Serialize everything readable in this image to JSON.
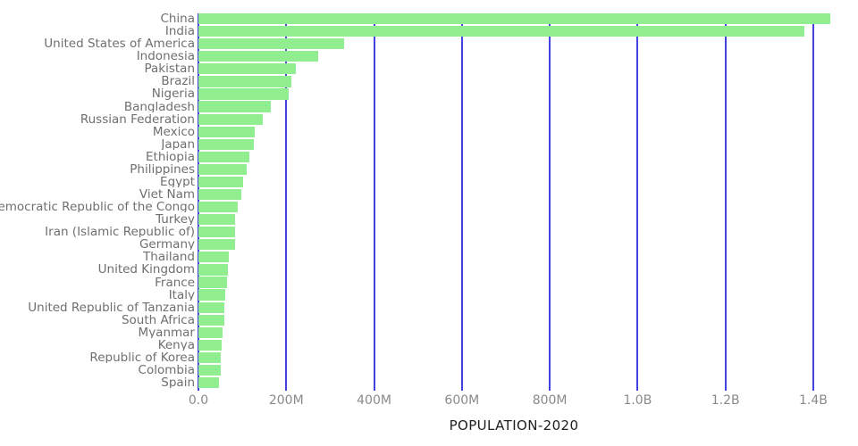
{
  "chart_data": {
    "type": "bar",
    "orientation": "horizontal",
    "title": "",
    "xlabel": "POPULATION-2020",
    "ylabel": "",
    "units": "millions of people",
    "grid": true,
    "bar_color": "#90ee90",
    "gridline_color": "#4343e0",
    "xlim_millions": [
      0,
      1480
    ],
    "categories": [
      "China",
      "India",
      "United States of America",
      "Indonesia",
      "Pakistan",
      "Brazil",
      "Nigeria",
      "Bangladesh",
      "Russian Federation",
      "Mexico",
      "Japan",
      "Ethiopia",
      "Philippines",
      "Egypt",
      "Viet Nam",
      "Democratic Republic of the Congo",
      "Turkey",
      "Iran (Islamic Republic of)",
      "Germany",
      "Thailand",
      "United Kingdom",
      "France",
      "Italy",
      "United Republic of Tanzania",
      "South Africa",
      "Myanmar",
      "Kenya",
      "Republic of Korea",
      "Colombia",
      "Spain"
    ],
    "values_millions": [
      1439.3,
      1380.0,
      331.0,
      273.5,
      220.9,
      212.6,
      206.1,
      164.7,
      145.9,
      128.9,
      126.5,
      115.0,
      109.6,
      102.3,
      97.3,
      89.6,
      84.3,
      84.0,
      83.8,
      69.8,
      67.9,
      65.3,
      60.5,
      59.7,
      59.3,
      54.4,
      53.8,
      51.3,
      50.9,
      46.8
    ],
    "x_ticks": [
      {
        "value_millions": 0,
        "label": "0.0"
      },
      {
        "value_millions": 200,
        "label": "200M"
      },
      {
        "value_millions": 400,
        "label": "400M"
      },
      {
        "value_millions": 600,
        "label": "600M"
      },
      {
        "value_millions": 800,
        "label": "800M"
      },
      {
        "value_millions": 1000,
        "label": "1.0B"
      },
      {
        "value_millions": 1200,
        "label": "1.2B"
      },
      {
        "value_millions": 1400,
        "label": "1.4B"
      }
    ]
  }
}
